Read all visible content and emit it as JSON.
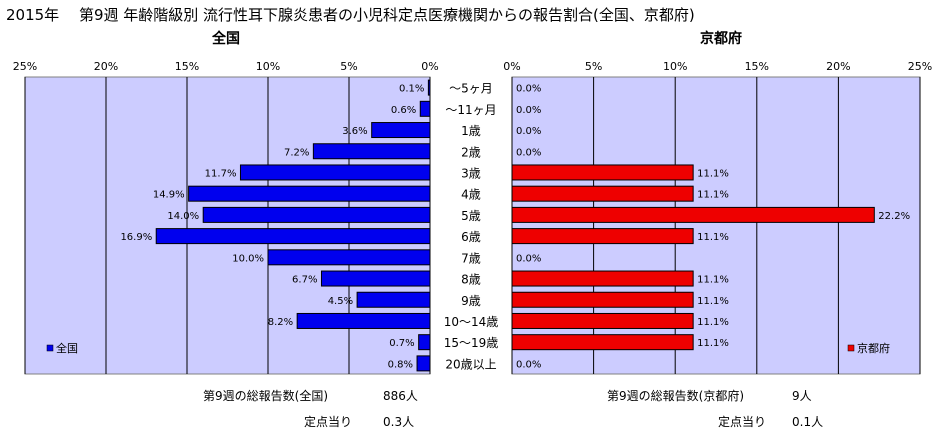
{
  "header": {
    "title": "2015年　 第9週 年齢階級別 流行性耳下腺炎患者の小児科定点医療機関からの報告割合(全国、京都府)"
  },
  "colors": {
    "national_bar": "#0000ee",
    "kyoto_bar": "#ee0000",
    "plot_bg": "#ccccff",
    "grid": "#000000"
  },
  "chart_data": [
    {
      "type": "bar",
      "orientation": "horizontal",
      "direction": "right-to-left",
      "title": "全国",
      "xlim": [
        0,
        25
      ],
      "xticks": [
        "0%",
        "5%",
        "10%",
        "15%",
        "20%",
        "25%"
      ],
      "categories": [
        "～5ヶ月",
        "～11ヶ月",
        "1歳",
        "2歳",
        "3歳",
        "4歳",
        "5歳",
        "6歳",
        "7歳",
        "8歳",
        "9歳",
        "10～14歳",
        "15～19歳",
        "20歳以上"
      ],
      "series": [
        {
          "name": "全国",
          "values": [
            0.1,
            0.6,
            3.6,
            7.2,
            11.7,
            14.9,
            14.0,
            16.9,
            10.0,
            6.7,
            4.5,
            8.2,
            0.7,
            0.8
          ],
          "labels": [
            "0.1%",
            "0.6%",
            "3.6%",
            "7.2%",
            "11.7%",
            "14.9%",
            "14.0%",
            "16.9%",
            "10.0%",
            "6.7%",
            "4.5%",
            "8.2%",
            "0.7%",
            "0.8%"
          ]
        }
      ],
      "legend": "bottom-left",
      "grid": true
    },
    {
      "type": "bar",
      "orientation": "horizontal",
      "direction": "left-to-right",
      "title": "京都府",
      "xlim": [
        0,
        25
      ],
      "xticks": [
        "0%",
        "5%",
        "10%",
        "15%",
        "20%",
        "25%"
      ],
      "series": [
        {
          "name": "京都府",
          "values": [
            0.0,
            0.0,
            0.0,
            0.0,
            11.1,
            11.1,
            22.2,
            11.1,
            0.0,
            11.1,
            11.1,
            11.1,
            11.1,
            0.0
          ],
          "labels": [
            "0.0%",
            "0.0%",
            "0.0%",
            "0.0%",
            "11.1%",
            "11.1%",
            "22.2%",
            "11.1%",
            "0.0%",
            "11.1%",
            "11.1%",
            "11.1%",
            "11.1%",
            "0.0%"
          ]
        }
      ],
      "legend": "bottom-right",
      "grid": true
    }
  ],
  "footer": {
    "left": {
      "total_label": "第9週の総報告数(全国)",
      "total_value": "886人",
      "per_label": "定点当り",
      "per_value": "0.3人"
    },
    "right": {
      "total_label": "第9週の総報告数(京都府)",
      "total_value": "9人",
      "per_label": "定点当り",
      "per_value": "0.1人"
    }
  }
}
